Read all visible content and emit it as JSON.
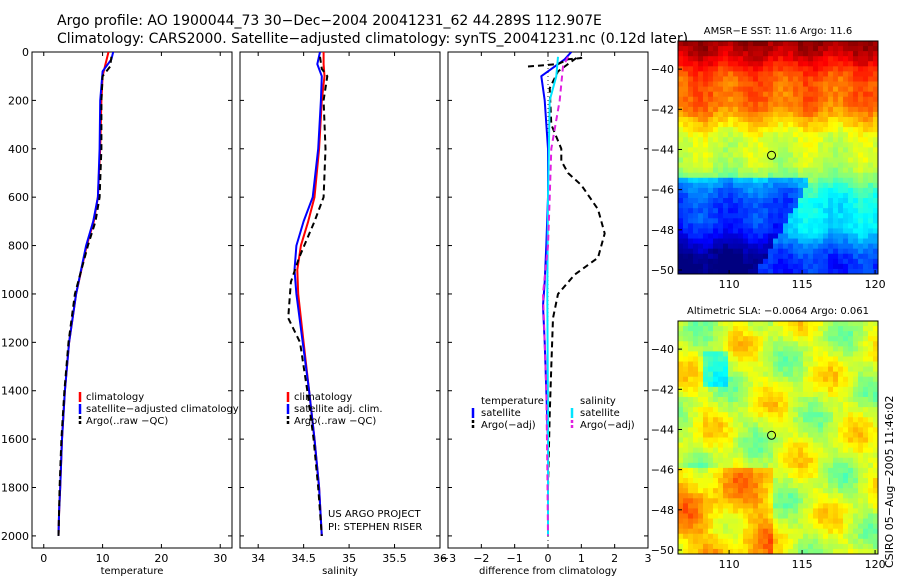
{
  "header": {
    "line1": "Argo profile: AO 1900044_73 30−Dec−2004 20041231_62 44.289S 112.907E",
    "line2": "Climatology: CARS2000. Satellite−adjusted climatology: synTS_20041231.nc (0.12d later)"
  },
  "footer_credit": "CSIRO 05−Aug−2005 11:46:02",
  "colors": {
    "climatology": "#ff0000",
    "satellite": "#0000ff",
    "argo": "#000000",
    "salinity_sat": "#00e5ff",
    "salinity_argo": "#e020e0"
  },
  "chart_data": [
    {
      "id": "temp",
      "type": "line",
      "xlabel": "temperature",
      "ylabel": "",
      "xlim": [
        -2,
        32
      ],
      "ylim": [
        2050,
        0
      ],
      "y_reversed": true,
      "xticks": [
        0,
        10,
        20,
        30
      ],
      "yticks": [
        0,
        200,
        400,
        600,
        800,
        1000,
        1200,
        1400,
        1600,
        1800,
        2000
      ],
      "legend": {
        "position": "bottom-right",
        "items": [
          {
            "label": "climatology",
            "color": "#ff0000",
            "dash": false
          },
          {
            "label": "satellite−adjusted climatology",
            "color": "#0000ff",
            "dash": false
          },
          {
            "label": "Argo(..raw −QC)",
            "color": "#000000",
            "dash": true
          }
        ]
      },
      "series": [
        {
          "name": "climatology",
          "color": "#ff0000",
          "dash": false,
          "x": [
            11.0,
            10.5,
            10.0,
            9.8,
            9.6,
            9.2,
            8.5,
            7.3,
            5.5,
            4.3,
            3.6,
            3.1,
            2.8,
            2.6,
            2.5
          ],
          "y": [
            0,
            50,
            100,
            200,
            400,
            600,
            700,
            800,
            1000,
            1200,
            1400,
            1600,
            1800,
            1900,
            2000
          ]
        },
        {
          "name": "satellite−adjusted climatology",
          "color": "#0000ff",
          "dash": false,
          "x": [
            11.8,
            11.5,
            10.0,
            9.6,
            9.5,
            9.2,
            8.4,
            7.2,
            5.5,
            4.3,
            3.6,
            3.1,
            2.8,
            2.6,
            2.5
          ],
          "y": [
            0,
            30,
            80,
            200,
            400,
            600,
            700,
            800,
            1000,
            1200,
            1400,
            1600,
            1800,
            1900,
            2000
          ]
        },
        {
          "name": "Argo(..raw −QC)",
          "color": "#000000",
          "dash": true,
          "x": [
            11.5,
            11.3,
            10.0,
            9.8,
            9.8,
            9.5,
            8.8,
            7.5,
            5.3,
            4.2,
            3.5,
            3.0,
            2.7,
            2.5
          ],
          "y": [
            20,
            60,
            100,
            200,
            400,
            600,
            700,
            800,
            1000,
            1200,
            1400,
            1600,
            1800,
            2000
          ]
        }
      ]
    },
    {
      "id": "sal",
      "type": "line",
      "xlabel": "salinity",
      "ylabel": "",
      "xlim": [
        33.8,
        36.0
      ],
      "ylim": [
        2050,
        0
      ],
      "y_reversed": true,
      "xticks": [
        34,
        34.5,
        35,
        35.5,
        36
      ],
      "legend": {
        "position": "bottom-right",
        "items": [
          {
            "label": "climatology",
            "color": "#ff0000",
            "dash": false
          },
          {
            "label": "satellite adj. clim.",
            "color": "#0000ff",
            "dash": false
          },
          {
            "label": "Argo(..raw −QC)",
            "color": "#000000",
            "dash": true
          }
        ]
      },
      "annotation": [
        "US ARGO PROJECT",
        "PI: STEPHEN RISER"
      ],
      "series": [
        {
          "name": "climatology",
          "color": "#ff0000",
          "dash": false,
          "x": [
            34.72,
            34.72,
            34.73,
            34.7,
            34.67,
            34.62,
            34.55,
            34.47,
            34.43,
            34.44,
            34.5,
            34.56,
            34.62,
            34.67,
            34.7
          ],
          "y": [
            0,
            50,
            100,
            200,
            400,
            600,
            700,
            800,
            900,
            1000,
            1200,
            1400,
            1600,
            1800,
            2000
          ]
        },
        {
          "name": "satellite adj. clim.",
          "color": "#0000ff",
          "dash": false,
          "x": [
            34.68,
            34.65,
            34.7,
            34.69,
            34.66,
            34.6,
            34.5,
            34.42,
            34.4,
            34.42,
            34.49,
            34.56,
            34.62,
            34.67,
            34.7
          ],
          "y": [
            0,
            50,
            100,
            200,
            400,
            600,
            700,
            800,
            900,
            1000,
            1200,
            1400,
            1600,
            1800,
            2000
          ]
        },
        {
          "name": "Argo(..raw −QC)",
          "color": "#000000",
          "dash": true,
          "x": [
            34.68,
            34.7,
            34.76,
            34.72,
            34.74,
            34.72,
            34.62,
            34.45,
            34.36,
            34.33,
            34.46,
            34.54,
            34.61,
            34.66,
            34.7
          ],
          "y": [
            20,
            70,
            100,
            200,
            400,
            600,
            700,
            850,
            950,
            1100,
            1200,
            1400,
            1600,
            1800,
            2000
          ]
        }
      ]
    },
    {
      "id": "diff",
      "type": "line",
      "xlabel": "difference from climatology",
      "ylabel": "",
      "xlim": [
        -3,
        3
      ],
      "ylim": [
        2050,
        0
      ],
      "y_reversed": true,
      "xticks": [
        -3,
        -2,
        -1,
        0,
        1,
        2,
        3
      ],
      "legend": {
        "position": "bottom",
        "columns": [
          {
            "title": "temperature",
            "items": [
              {
                "label": "satellite",
                "color": "#0000ff",
                "dash": false
              },
              {
                "label": "Argo(−adj)",
                "color": "#000000",
                "dash": true
              }
            ]
          },
          {
            "title": "salinity",
            "items": [
              {
                "label": "satellite",
                "color": "#00e5ff",
                "dash": false
              },
              {
                "label": "Argo(−adj)",
                "color": "#e020e0",
                "dash": true
              }
            ]
          }
        ]
      },
      "series": [
        {
          "name": "temperature satellite",
          "color": "#0000ff",
          "dash": false,
          "x": [
            0.7,
            0.5,
            -0.2,
            -0.1,
            0.0,
            0.0,
            -0.05,
            -0.1,
            -0.15,
            -0.1,
            -0.05,
            0.0,
            0.0
          ],
          "y": [
            0,
            30,
            100,
            200,
            400,
            600,
            800,
            950,
            1050,
            1200,
            1400,
            1600,
            2000
          ]
        },
        {
          "name": "temperature Argo(−adj)",
          "color": "#000000",
          "dash": true,
          "x": [
            -0.6,
            0.3,
            0.6,
            1.0,
            0.9,
            0.3,
            0.05,
            0.1,
            0.4,
            0.4,
            0.6,
            1.0,
            1.5,
            1.7,
            1.5,
            0.8,
            0.3,
            0.15,
            0.1,
            0.05,
            0.0,
            0.0
          ],
          "y": [
            60,
            50,
            30,
            25,
            20,
            80,
            150,
            300,
            400,
            450,
            500,
            550,
            650,
            750,
            850,
            920,
            1000,
            1100,
            1300,
            1500,
            1800,
            2000
          ]
        },
        {
          "name": "salinity satellite",
          "color": "#00e5ff",
          "dash": false,
          "x": [
            0.3,
            0.25,
            0.05,
            0.0,
            -0.02,
            0.0,
            0.0
          ],
          "y": [
            20,
            100,
            200,
            600,
            1000,
            1500,
            2000
          ]
        },
        {
          "name": "salinity Argo(−adj)",
          "color": "#e020e0",
          "dash": true,
          "x": [
            0.6,
            0.45,
            0.35,
            0.1,
            0.05,
            0.0,
            -0.15,
            -0.1,
            -0.05,
            -0.02,
            0.0
          ],
          "y": [
            20,
            60,
            200,
            400,
            600,
            800,
            1000,
            1200,
            1400,
            1700,
            2000
          ]
        }
      ]
    },
    {
      "id": "sst_map",
      "type": "heatmap",
      "title": "AMSR−E SST: 11.6 Argo: 11.6",
      "xlim": [
        106.5,
        120.2
      ],
      "ylim": [
        -50.2,
        -38.6
      ],
      "xticks": [
        110,
        115,
        120
      ],
      "yticks": [
        -40,
        -42,
        -44,
        -46,
        -48,
        -50
      ],
      "marker": {
        "lon": 112.907,
        "lat": -44.289
      },
      "colormap": "jet"
    },
    {
      "id": "sla_map",
      "type": "heatmap",
      "title": "Altimetric SLA: −0.0064 Argo: 0.061",
      "xlim": [
        106.5,
        120.2
      ],
      "ylim": [
        -50.2,
        -38.6
      ],
      "xticks": [
        110,
        115,
        120
      ],
      "yticks": [
        -40,
        -42,
        -44,
        -46,
        -48,
        -50
      ],
      "marker": {
        "lon": 112.907,
        "lat": -44.289
      },
      "colormap": "jet"
    }
  ]
}
